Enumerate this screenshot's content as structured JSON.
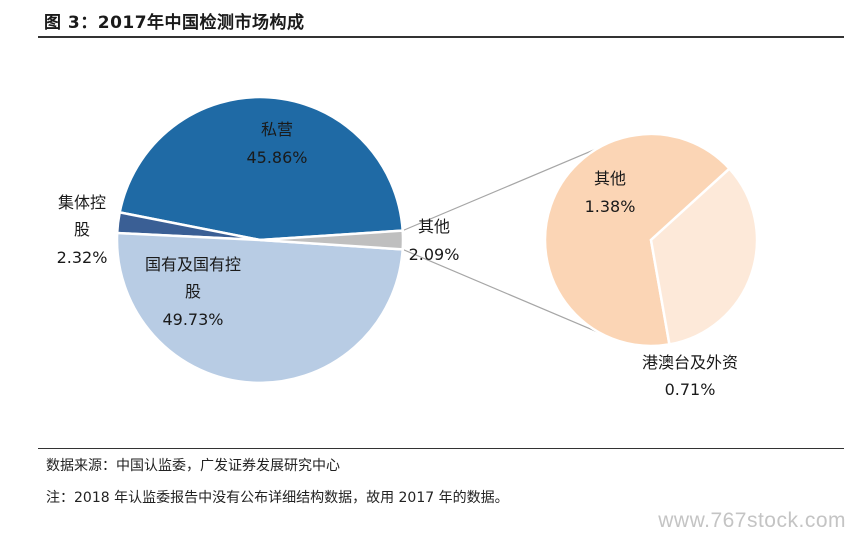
{
  "header": {
    "title": "图 3：2017年中国检测市场构成"
  },
  "chart_data": [
    {
      "type": "pie",
      "slices": [
        {
          "label": "私营",
          "value": 45.86,
          "value_text": "45.86%",
          "color": "#1f6aa5"
        },
        {
          "label": "集体控股",
          "value": 2.32,
          "value_text": "2.32%",
          "color": "#3a5f95"
        },
        {
          "label": "国有及国有控股",
          "value": 49.73,
          "value_text": "49.73%",
          "color": "#b8cce4"
        },
        {
          "label": "其他",
          "value": 2.09,
          "value_text": "2.09%",
          "color": "#bfbfbf"
        }
      ]
    },
    {
      "type": "pie",
      "slices": [
        {
          "label": "其他",
          "value": 1.38,
          "value_text": "1.38%",
          "color": "#fbd5b5"
        },
        {
          "label": "港澳台及外资",
          "value": 0.71,
          "value_text": "0.71%",
          "color": "#fde9d9"
        }
      ]
    }
  ],
  "footer": {
    "source": "数据来源：中国认监委，广发证券发展研究中心",
    "note": "注：2018 年认监委报告中没有公布详细结构数据，故用 2017 年的数据。"
  },
  "watermark": "www.767stock.com"
}
